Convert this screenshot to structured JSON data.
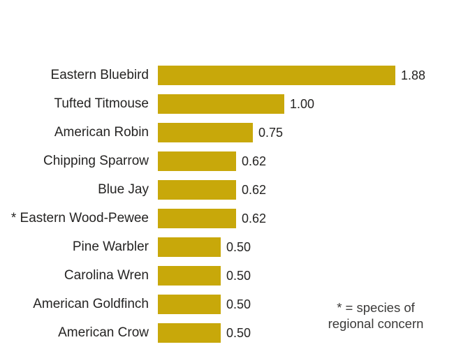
{
  "chart_data": {
    "type": "bar",
    "orientation": "horizontal",
    "title": "",
    "xlabel": "",
    "ylabel": "",
    "xlim": [
      0,
      1.88
    ],
    "grid": false,
    "legend": false,
    "categories": [
      "Eastern Bluebird",
      "Tufted Titmouse",
      "American Robin",
      "Chipping Sparrow",
      "Blue Jay",
      "* Eastern Wood-Pewee",
      "Pine Warbler",
      "Carolina Wren",
      "American Goldfinch",
      "American Crow"
    ],
    "values": [
      1.88,
      1.0,
      0.75,
      0.62,
      0.62,
      0.62,
      0.5,
      0.5,
      0.5,
      0.5
    ],
    "value_labels": [
      "1.88",
      "1.00",
      "0.75",
      "0.62",
      "0.62",
      "0.62",
      "0.50",
      "0.50",
      "0.50",
      "0.50"
    ],
    "bar_color": "#C8A80A",
    "label_color": "#252423",
    "annotation": {
      "lines": [
        "* = species of",
        "regional concern"
      ],
      "color": "#3B3A39"
    }
  }
}
